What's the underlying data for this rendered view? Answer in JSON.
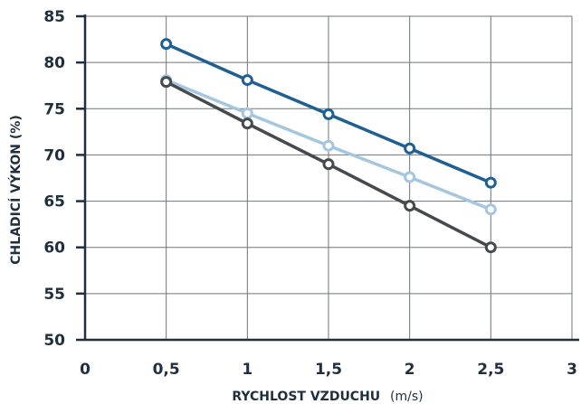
{
  "chart_data": {
    "type": "line",
    "title": "",
    "xlabel": "RYCHLOST VZDUCHU",
    "xlabel_unit": "(m/s)",
    "ylabel": "CHLADICÍ VÝKON (%)",
    "xlim": [
      0,
      3
    ],
    "ylim": [
      50,
      85
    ],
    "x_ticks": [
      "0",
      "0,5",
      "1",
      "1,5",
      "2",
      "2,5",
      "3"
    ],
    "y_ticks": [
      "50",
      "55",
      "60",
      "65",
      "70",
      "75",
      "80",
      "85"
    ],
    "grid": true,
    "legend": "none",
    "x": [
      0.5,
      1,
      1.5,
      2,
      2.5
    ],
    "series": [
      {
        "color": "#1f5f92",
        "values": [
          82,
          78.1,
          74.4,
          70.7,
          67
        ]
      },
      {
        "color": "#a5c6df",
        "values": [
          78.1,
          74.5,
          71,
          67.6,
          64.1
        ]
      },
      {
        "color": "#454a4e",
        "values": [
          77.9,
          73.4,
          69,
          64.5,
          60
        ]
      }
    ]
  }
}
